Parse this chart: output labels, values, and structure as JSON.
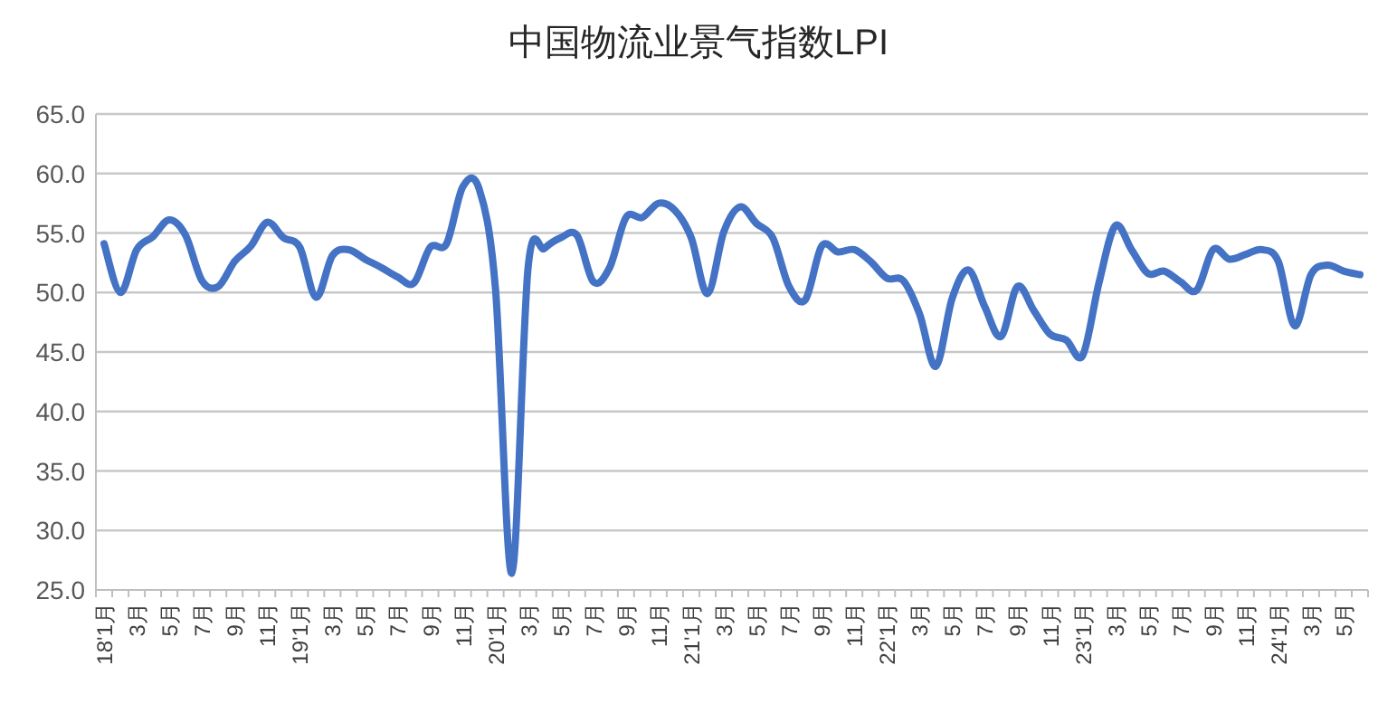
{
  "chart_data": {
    "type": "line",
    "title": "中国物流业景气指数LPI",
    "categories": [
      "18'1月",
      null,
      "3月",
      null,
      "5月",
      null,
      "7月",
      null,
      "9月",
      null,
      "11月",
      null,
      "19'1月",
      null,
      "3月",
      null,
      "5月",
      null,
      "7月",
      null,
      "9月",
      null,
      "11月",
      null,
      "20'1月",
      null,
      "3月",
      null,
      "5月",
      null,
      "7月",
      null,
      "9月",
      null,
      "11月",
      null,
      "21'1月",
      null,
      "3月",
      null,
      "5月",
      null,
      "7月",
      null,
      "9月",
      null,
      "11月",
      null,
      "22'1月",
      null,
      "3月",
      null,
      "5月",
      null,
      "7月",
      null,
      "9月",
      null,
      "11月",
      null,
      "23'1月",
      null,
      "3月",
      null,
      "5月",
      null,
      "7月",
      null,
      "9月",
      null,
      "11月",
      null,
      "24'1月",
      null,
      "3月",
      null,
      "5月",
      null
    ],
    "series": [
      {
        "color": "#4472c4",
        "values": [
          54.1,
          50.0,
          53.6,
          54.7,
          56.1,
          54.8,
          51.0,
          50.5,
          52.6,
          53.9,
          55.9,
          54.6,
          53.8,
          49.6,
          53.1,
          53.6,
          52.8,
          52.1,
          51.3,
          50.8,
          53.8,
          54.1,
          58.9,
          58.7,
          50.3,
          26.4,
          52.1,
          53.7,
          54.6,
          54.8,
          50.9,
          52.1,
          56.3,
          56.3,
          57.5,
          56.9,
          54.6,
          49.9,
          55.1,
          57.2,
          55.8,
          54.6,
          50.5,
          49.4,
          53.9,
          53.4,
          53.6,
          52.6,
          51.2,
          51.0,
          48.2,
          43.8,
          49.5,
          51.9,
          48.8,
          46.3,
          50.5,
          48.5,
          46.5,
          46.0,
          44.7,
          50.8,
          55.6,
          53.6,
          51.6,
          51.8,
          50.9,
          50.2,
          53.6,
          52.8,
          53.2,
          53.6,
          52.6,
          47.2,
          51.5,
          52.3,
          51.8,
          51.5
        ]
      }
    ],
    "ylim": [
      25,
      65
    ],
    "yticks": [
      {
        "value": 25,
        "label": "25.0"
      },
      {
        "value": 30,
        "label": "30.0"
      },
      {
        "value": 35,
        "label": "35.0"
      },
      {
        "value": 40,
        "label": "40.0"
      },
      {
        "value": 45,
        "label": "45.0"
      },
      {
        "value": 50,
        "label": "50.0"
      },
      {
        "value": 55,
        "label": "55.0"
      },
      {
        "value": 60,
        "label": "60.0"
      },
      {
        "value": 65,
        "label": "65.0"
      }
    ],
    "grid": "y",
    "marker": "none",
    "line_style": "solid"
  }
}
